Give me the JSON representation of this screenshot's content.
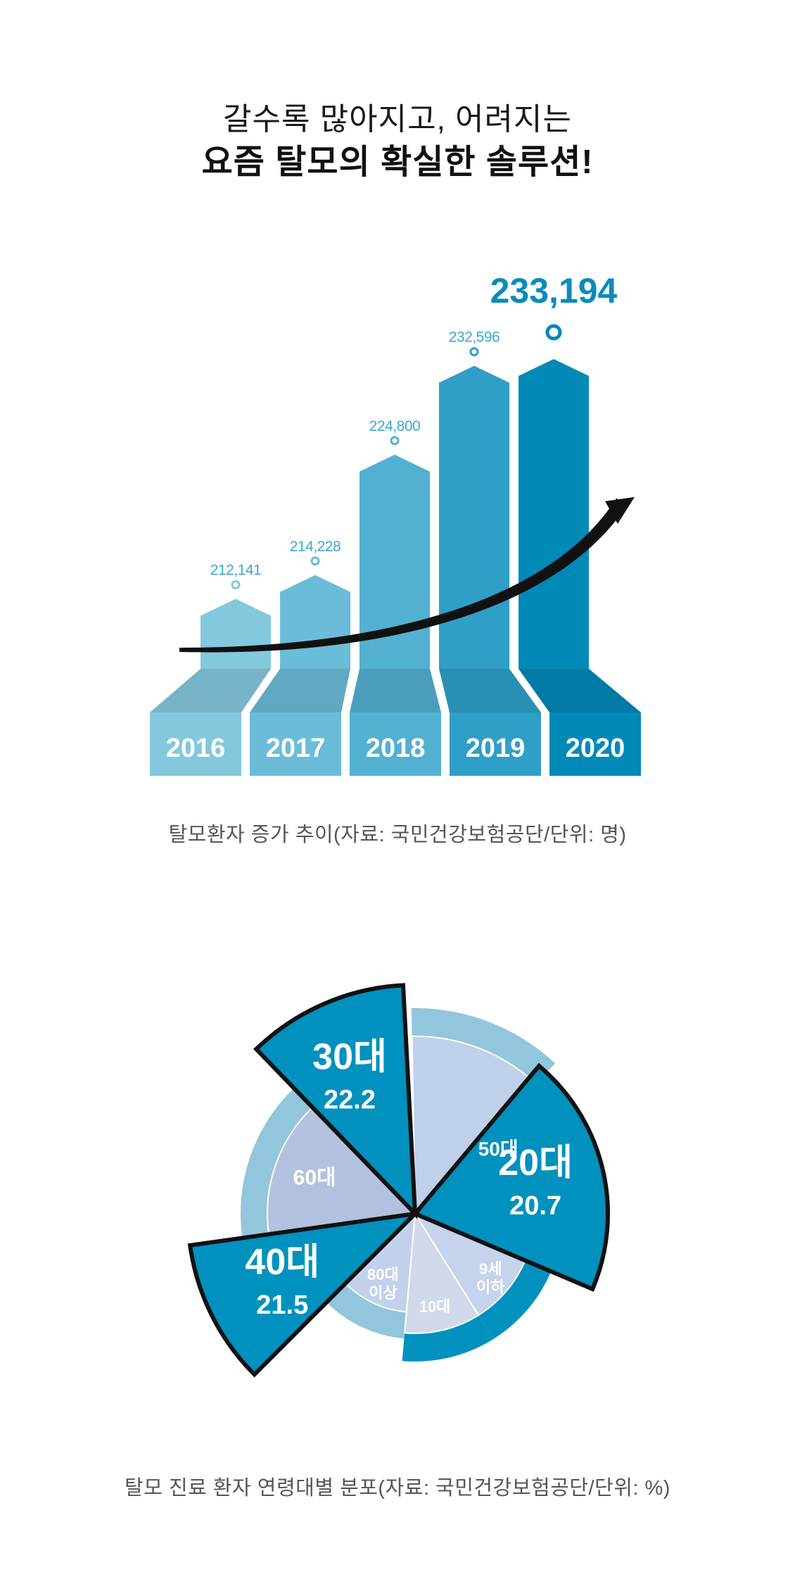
{
  "headline": {
    "line1": "갈수록 많아지고, 어려지는",
    "line2": "요즘 탈모의 확실한 솔루션!"
  },
  "chart_data": [
    {
      "type": "bar",
      "categories": [
        "2016",
        "2017",
        "2018",
        "2019",
        "2020"
      ],
      "values": [
        212141,
        214228,
        224800,
        232596,
        233194
      ],
      "value_labels": [
        "212,141",
        "214,228",
        "224,800",
        "232,596",
        "233,194"
      ],
      "caption": "탈모환자 증가 추이(자료: 국민건강보험공단/단위: 명)",
      "colors": [
        "#84c8de",
        "#6bbcd8",
        "#52b0d1",
        "#2f9fc8",
        "#0189b8"
      ],
      "trend_arrow": true
    },
    {
      "type": "pie",
      "subtype": "polar-area",
      "slices": [
        {
          "label": "50대",
          "value": null,
          "color": "#bfd1ea",
          "highlight": false
        },
        {
          "label": "20대",
          "value": 20.7,
          "color": "#0091be",
          "highlight": true
        },
        {
          "label": "9세 이하",
          "value": null,
          "color": "#c6d3ec",
          "highlight": false
        },
        {
          "label": "10대",
          "value": null,
          "color": "#d0d9ea",
          "highlight": false
        },
        {
          "label": "80대 이상",
          "value": null,
          "color": "#c3d0ec",
          "highlight": false
        },
        {
          "label": "40대",
          "value": 21.5,
          "color": "#0091be",
          "highlight": true
        },
        {
          "label": "60대",
          "value": null,
          "color": "#b2c2de",
          "highlight": false
        },
        {
          "label": "30대",
          "value": 22.2,
          "color": "#0091be",
          "highlight": true
        }
      ],
      "caption": "탈모 진료 환자 연령대별 분포(자료: 국민건강보험공단/단위: %)"
    }
  ]
}
